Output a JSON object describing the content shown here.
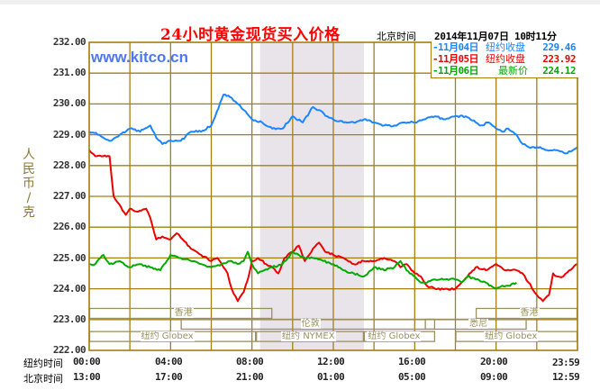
{
  "header": {
    "title": "24小时黄金现货买入价格",
    "beijing_label": "北京时间",
    "timestamp": "2014年11月07日 10时11分",
    "watermark": "www.kitco.cn"
  },
  "legend": [
    {
      "date": "-11月04日",
      "kind": "纽约收盘",
      "value": "229.46",
      "color": "#1a86ff"
    },
    {
      "date": "-11月05日",
      "kind": "纽约收盘",
      "value": "223.92",
      "color": "#ee0000"
    },
    {
      "date": "-11月06日",
      "kind": "最新价",
      "value": "224.12",
      "color": "#00aa00"
    }
  ],
  "axis": {
    "ylabel_chars": [
      "人",
      "民",
      "币",
      "/",
      "克"
    ],
    "yticks": [
      "232.00",
      "231.00",
      "230.00",
      "229.00",
      "228.00",
      "227.00",
      "226.00",
      "225.00",
      "224.00",
      "223.00",
      "222.00"
    ],
    "row1_label": "纽约时间",
    "row2_label": "北京时间",
    "ny_times": [
      "00:00",
      "04:00",
      "08:00",
      "12:00",
      "16:00",
      "20:00",
      "23:59"
    ],
    "bj_times": [
      "13:00",
      "17:00",
      "21:00",
      "01:00",
      "05:00",
      "09:00",
      "12:59"
    ]
  },
  "sessions": [
    {
      "name": "香港",
      "start": 0,
      "end": 9,
      "row": 0
    },
    {
      "name": "香港",
      "start": 19,
      "end": 24,
      "row": 0
    },
    {
      "name": "伦敦",
      "start": 4.5,
      "end": 17,
      "row": 1
    },
    {
      "name": "悉尼",
      "start": 16.5,
      "end": 21.5,
      "row": 1
    },
    {
      "name": "纽约 Globex",
      "start": 0,
      "end": 8.2,
      "row": 2
    },
    {
      "name": "纽约 NYMEX",
      "start": 8.2,
      "end": 13.5,
      "row": 2
    },
    {
      "name": "纽约 Globex",
      "start": 13.5,
      "end": 17,
      "row": 2
    },
    {
      "name": "纽约 Globex",
      "start": 18,
      "end": 24,
      "row": 2
    }
  ],
  "chart_data": {
    "type": "line",
    "title": "24小时黄金现货买入价格",
    "xlabel": "纽约时间 / 北京时间",
    "ylabel": "人民币/克",
    "ylim": [
      222,
      232
    ],
    "xlim": [
      0,
      24
    ],
    "grid": true,
    "legend_position": "top-right",
    "x_tick_labels_ny": [
      "00:00",
      "04:00",
      "08:00",
      "12:00",
      "16:00",
      "20:00",
      "23:59"
    ],
    "x_tick_labels_beijing": [
      "13:00",
      "17:00",
      "21:00",
      "01:00",
      "05:00",
      "09:00",
      "12:59"
    ],
    "shaded_region_hours": [
      8.4,
      13.5
    ],
    "series": [
      {
        "name": "11月04日 纽约收盘 229.46",
        "color": "#1a86ff",
        "x": [
          0,
          0.5,
          1,
          1.5,
          2,
          2.5,
          3,
          3.3,
          3.6,
          4,
          4.5,
          5,
          5.5,
          6,
          6.2,
          6.6,
          7,
          7.3,
          7.6,
          8,
          8.5,
          9,
          9.5,
          10,
          10.5,
          11,
          11.3,
          11.7,
          12,
          12.5,
          13,
          13.5,
          14,
          14.5,
          15,
          15.5,
          16,
          16.5,
          17,
          17.5,
          18,
          18.5,
          19,
          19.3,
          19.6,
          20,
          20.3,
          20.6,
          21,
          21.3,
          21.6,
          22,
          22.5,
          23,
          23.5,
          24
        ],
        "y": [
          229.1,
          229.0,
          228.8,
          229.0,
          229.2,
          229.1,
          229.3,
          228.9,
          228.7,
          228.8,
          228.8,
          229.1,
          229.1,
          229.3,
          229.6,
          230.3,
          230.2,
          230.0,
          229.8,
          229.5,
          229.4,
          229.2,
          229.2,
          229.6,
          229.4,
          229.9,
          229.8,
          229.6,
          229.5,
          229.4,
          229.4,
          229.5,
          229.4,
          229.3,
          229.3,
          229.4,
          229.4,
          229.5,
          229.6,
          229.5,
          229.6,
          229.6,
          229.4,
          229.3,
          229.4,
          229.2,
          229.1,
          229.2,
          229.0,
          228.7,
          228.6,
          228.6,
          228.5,
          228.5,
          228.4,
          228.6
        ]
      },
      {
        "name": "11月05日 纽约收盘 223.92",
        "color": "#ee0000",
        "x": [
          0,
          0.3,
          0.6,
          1,
          1.2,
          1.4,
          1.8,
          2,
          2.4,
          2.8,
          3,
          3.3,
          3.6,
          4,
          4.3,
          4.6,
          5,
          5.5,
          6,
          6.3,
          6.6,
          6.8,
          7,
          7.3,
          7.6,
          7.8,
          8,
          8.3,
          8.7,
          9,
          9.3,
          9.6,
          10,
          10.3,
          10.6,
          11,
          11.3,
          11.6,
          12,
          12.5,
          13,
          13.5,
          14,
          14.5,
          15,
          15.3,
          15.6,
          16,
          16.3,
          16.6,
          17,
          17.5,
          18,
          18.3,
          18.6,
          19,
          19.5,
          20,
          20.5,
          21,
          21.3,
          21.6,
          22,
          22.3,
          22.6,
          22.8,
          23,
          23.3,
          23.6,
          24
        ],
        "y": [
          228.5,
          228.3,
          228.3,
          228.3,
          227.0,
          226.8,
          226.4,
          226.6,
          226.5,
          226.6,
          226.3,
          225.6,
          225.7,
          225.6,
          225.8,
          225.6,
          225.3,
          225.1,
          224.9,
          225.0,
          224.7,
          224.5,
          224.0,
          223.6,
          223.9,
          224.3,
          224.9,
          225.0,
          224.8,
          224.7,
          224.5,
          225.0,
          225.2,
          225.4,
          224.9,
          225.3,
          225.5,
          225.2,
          225.1,
          225.0,
          224.8,
          224.9,
          224.9,
          225.0,
          224.9,
          224.7,
          224.8,
          224.5,
          224.4,
          224.1,
          224.0,
          224.0,
          224.0,
          224.2,
          224.4,
          224.7,
          224.6,
          224.8,
          224.6,
          224.6,
          224.5,
          224.2,
          223.8,
          223.6,
          223.8,
          224.5,
          224.4,
          224.4,
          224.6,
          224.8
        ]
      },
      {
        "name": "11月06日 最新价 224.12",
        "color": "#00aa00",
        "x": [
          0,
          0.3,
          0.7,
          1,
          1.5,
          2,
          2.5,
          3,
          3.5,
          4,
          4.5,
          5,
          5.5,
          6,
          6.5,
          7,
          7.3,
          7.6,
          7.8,
          8,
          8.3,
          8.6,
          9,
          9.5,
          10,
          10.3,
          10.6,
          11,
          11.5,
          12,
          12.5,
          13,
          13.5,
          14,
          14.5,
          15,
          15.3,
          15.6,
          16,
          16.3,
          16.6,
          17,
          17.5,
          18,
          18.3,
          18.6,
          19,
          19.5,
          20,
          20.3,
          20.6,
          21
        ],
        "y": [
          224.8,
          224.8,
          225.1,
          224.8,
          224.9,
          224.7,
          224.8,
          224.7,
          224.6,
          225.1,
          225.0,
          224.9,
          224.8,
          224.7,
          224.8,
          224.9,
          224.8,
          224.9,
          225.2,
          224.8,
          224.5,
          224.6,
          224.7,
          224.8,
          225.2,
          225.1,
          225.0,
          225.0,
          224.9,
          224.8,
          224.6,
          224.5,
          224.4,
          224.7,
          224.6,
          224.7,
          224.9,
          224.6,
          224.4,
          224.2,
          224.2,
          224.3,
          224.3,
          224.3,
          224.2,
          224.4,
          224.3,
          224.2,
          224.0,
          224.1,
          224.1,
          224.2
        ]
      }
    ]
  }
}
